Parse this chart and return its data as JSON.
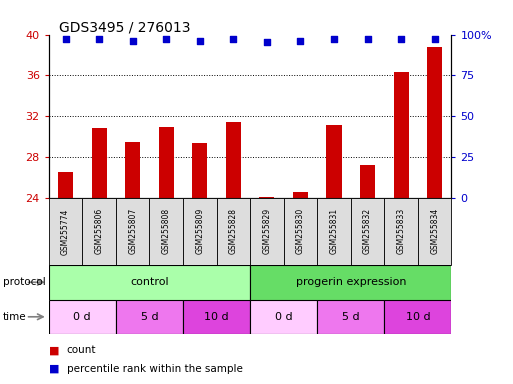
{
  "title": "GDS3495 / 276013",
  "samples": [
    "GSM255774",
    "GSM255806",
    "GSM255807",
    "GSM255808",
    "GSM255809",
    "GSM255828",
    "GSM255829",
    "GSM255830",
    "GSM255831",
    "GSM255832",
    "GSM255833",
    "GSM255834"
  ],
  "bar_values": [
    26.5,
    30.8,
    29.5,
    30.9,
    29.4,
    31.4,
    24.1,
    24.6,
    31.1,
    27.2,
    36.3,
    38.8
  ],
  "pct_values": [
    97,
    97,
    96,
    97,
    96,
    97,
    95.5,
    96,
    97,
    97,
    97.5,
    97.5
  ],
  "ylim_left": [
    24,
    40
  ],
  "ylim_right": [
    0,
    100
  ],
  "yticks_left": [
    24,
    28,
    32,
    36,
    40
  ],
  "yticks_right": [
    0,
    25,
    50,
    75,
    100
  ],
  "ytick_labels_right": [
    "0",
    "25",
    "50",
    "75",
    "100%"
  ],
  "bar_color": "#cc0000",
  "dot_color": "#0000cc",
  "protocol_control_color": "#aaffaa",
  "protocol_progerin_color": "#66dd66",
  "time_color_0d": "#ffccff",
  "time_color_5d": "#ee77ee",
  "time_color_10d": "#dd44dd",
  "sample_box_color": "#dddddd",
  "protocol_labels": [
    "control",
    "progerin expression"
  ],
  "time_labels": [
    "0 d",
    "5 d",
    "10 d",
    "0 d",
    "5 d",
    "10 d"
  ],
  "legend_count_color": "#cc0000",
  "legend_pct_color": "#0000cc",
  "title_fontsize": 10,
  "tick_fontsize": 8,
  "bar_width": 0.45
}
